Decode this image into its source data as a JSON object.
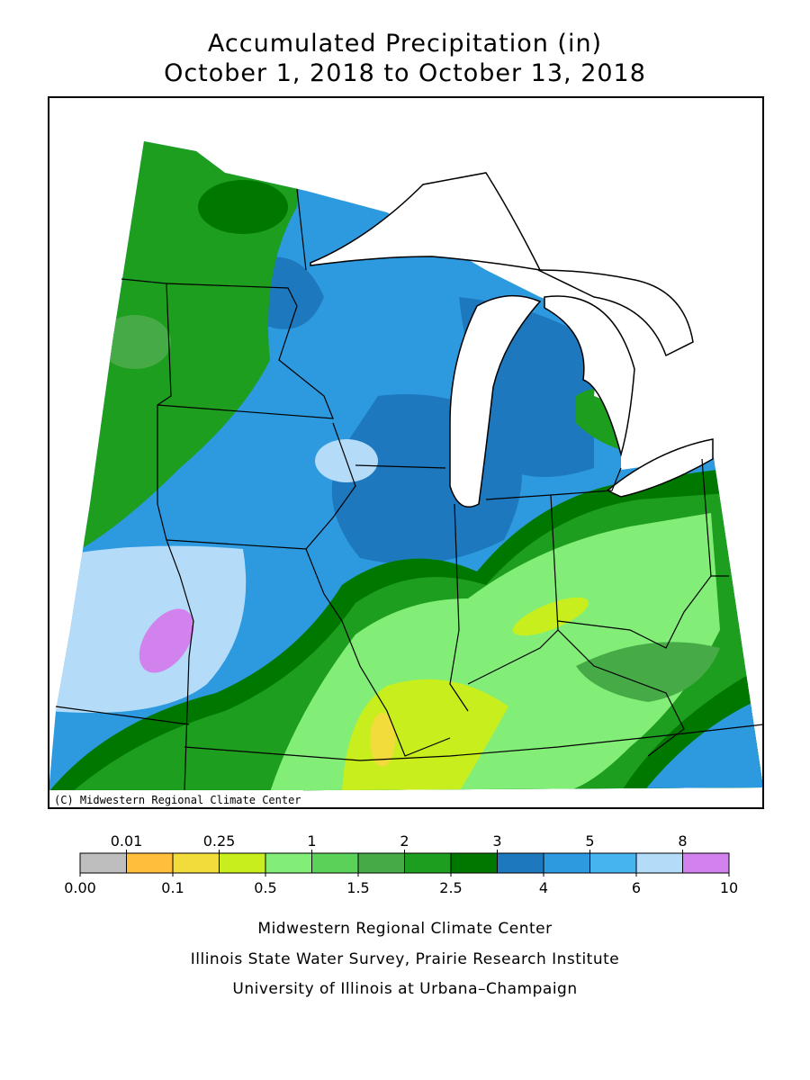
{
  "title": [
    "Accumulated Precipitation (in)",
    "October 1, 2018 to October 13, 2018"
  ],
  "map": {
    "credit": "(C) Midwestern Regional Climate Center"
  },
  "legend": {
    "boundaries": [
      {
        "value": 0,
        "label": "0.00"
      },
      0.01,
      0.1,
      0.25,
      0.5,
      1,
      1.5,
      2,
      2.5,
      3,
      4,
      5,
      6,
      8,
      10
    ],
    "colors": [
      "#bebebe",
      "#ffbe3c",
      "#f2dc3c",
      "#c8ee1e",
      "#82ee78",
      "#5ad25a",
      "#46aa46",
      "#1e9e1e",
      "#007800",
      "#1e78be",
      "#2d9ae0",
      "#46b4ee",
      "#b4dcf8",
      "#d282ec"
    ]
  },
  "footer": [
    "Midwestern Regional Climate Center",
    "Illinois State Water Survey, Prairie Research Institute",
    "University of Illinois at Urbana–Champaign"
  ]
}
